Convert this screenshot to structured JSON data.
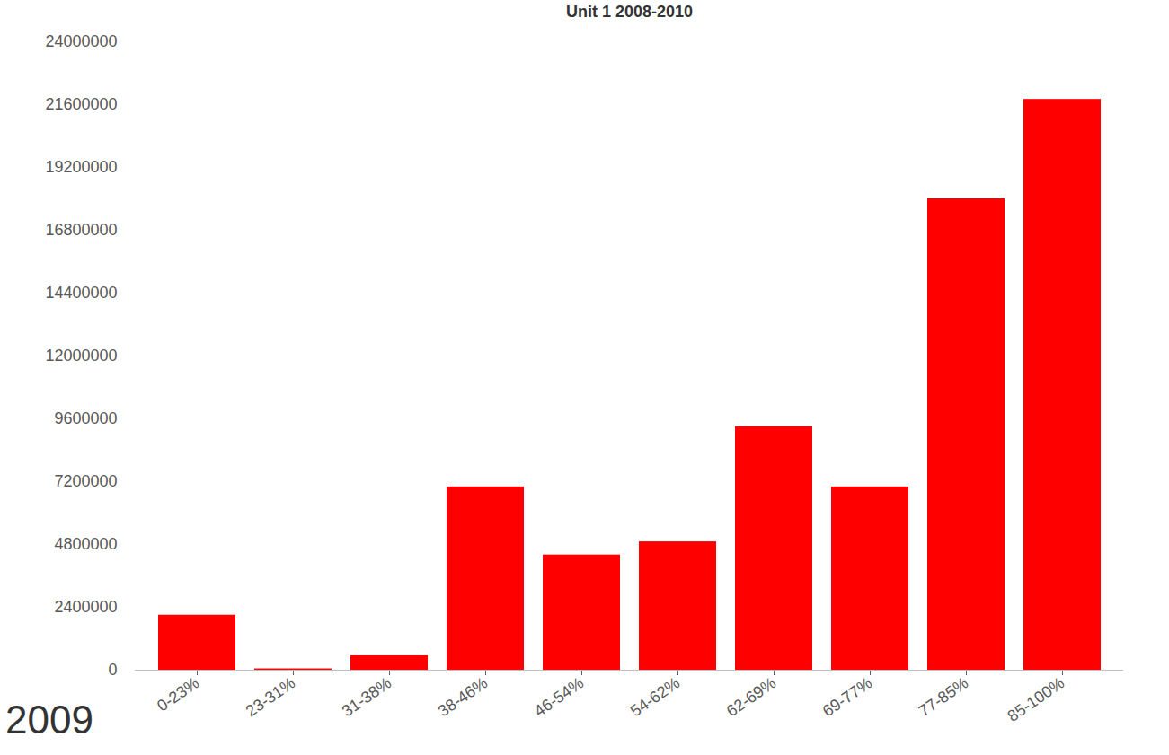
{
  "chart_data": {
    "type": "bar",
    "title": "Unit 1 2008-2010",
    "annotation": "2009",
    "categories": [
      "0-23%",
      "23-31%",
      "31-38%",
      "38-46%",
      "46-54%",
      "54-62%",
      "62-69%",
      "69-77%",
      "77-85%",
      "85-100%"
    ],
    "values": [
      2100000,
      50000,
      550000,
      7000000,
      4400000,
      4900000,
      9300000,
      7000000,
      18000000,
      21800000
    ],
    "color": "#ff0000",
    "ylim": [
      0,
      24000000
    ],
    "yticks": [
      0,
      2400000,
      4800000,
      7200000,
      9600000,
      12000000,
      14400000,
      16800000,
      19200000,
      21600000,
      24000000
    ],
    "grid": false
  }
}
